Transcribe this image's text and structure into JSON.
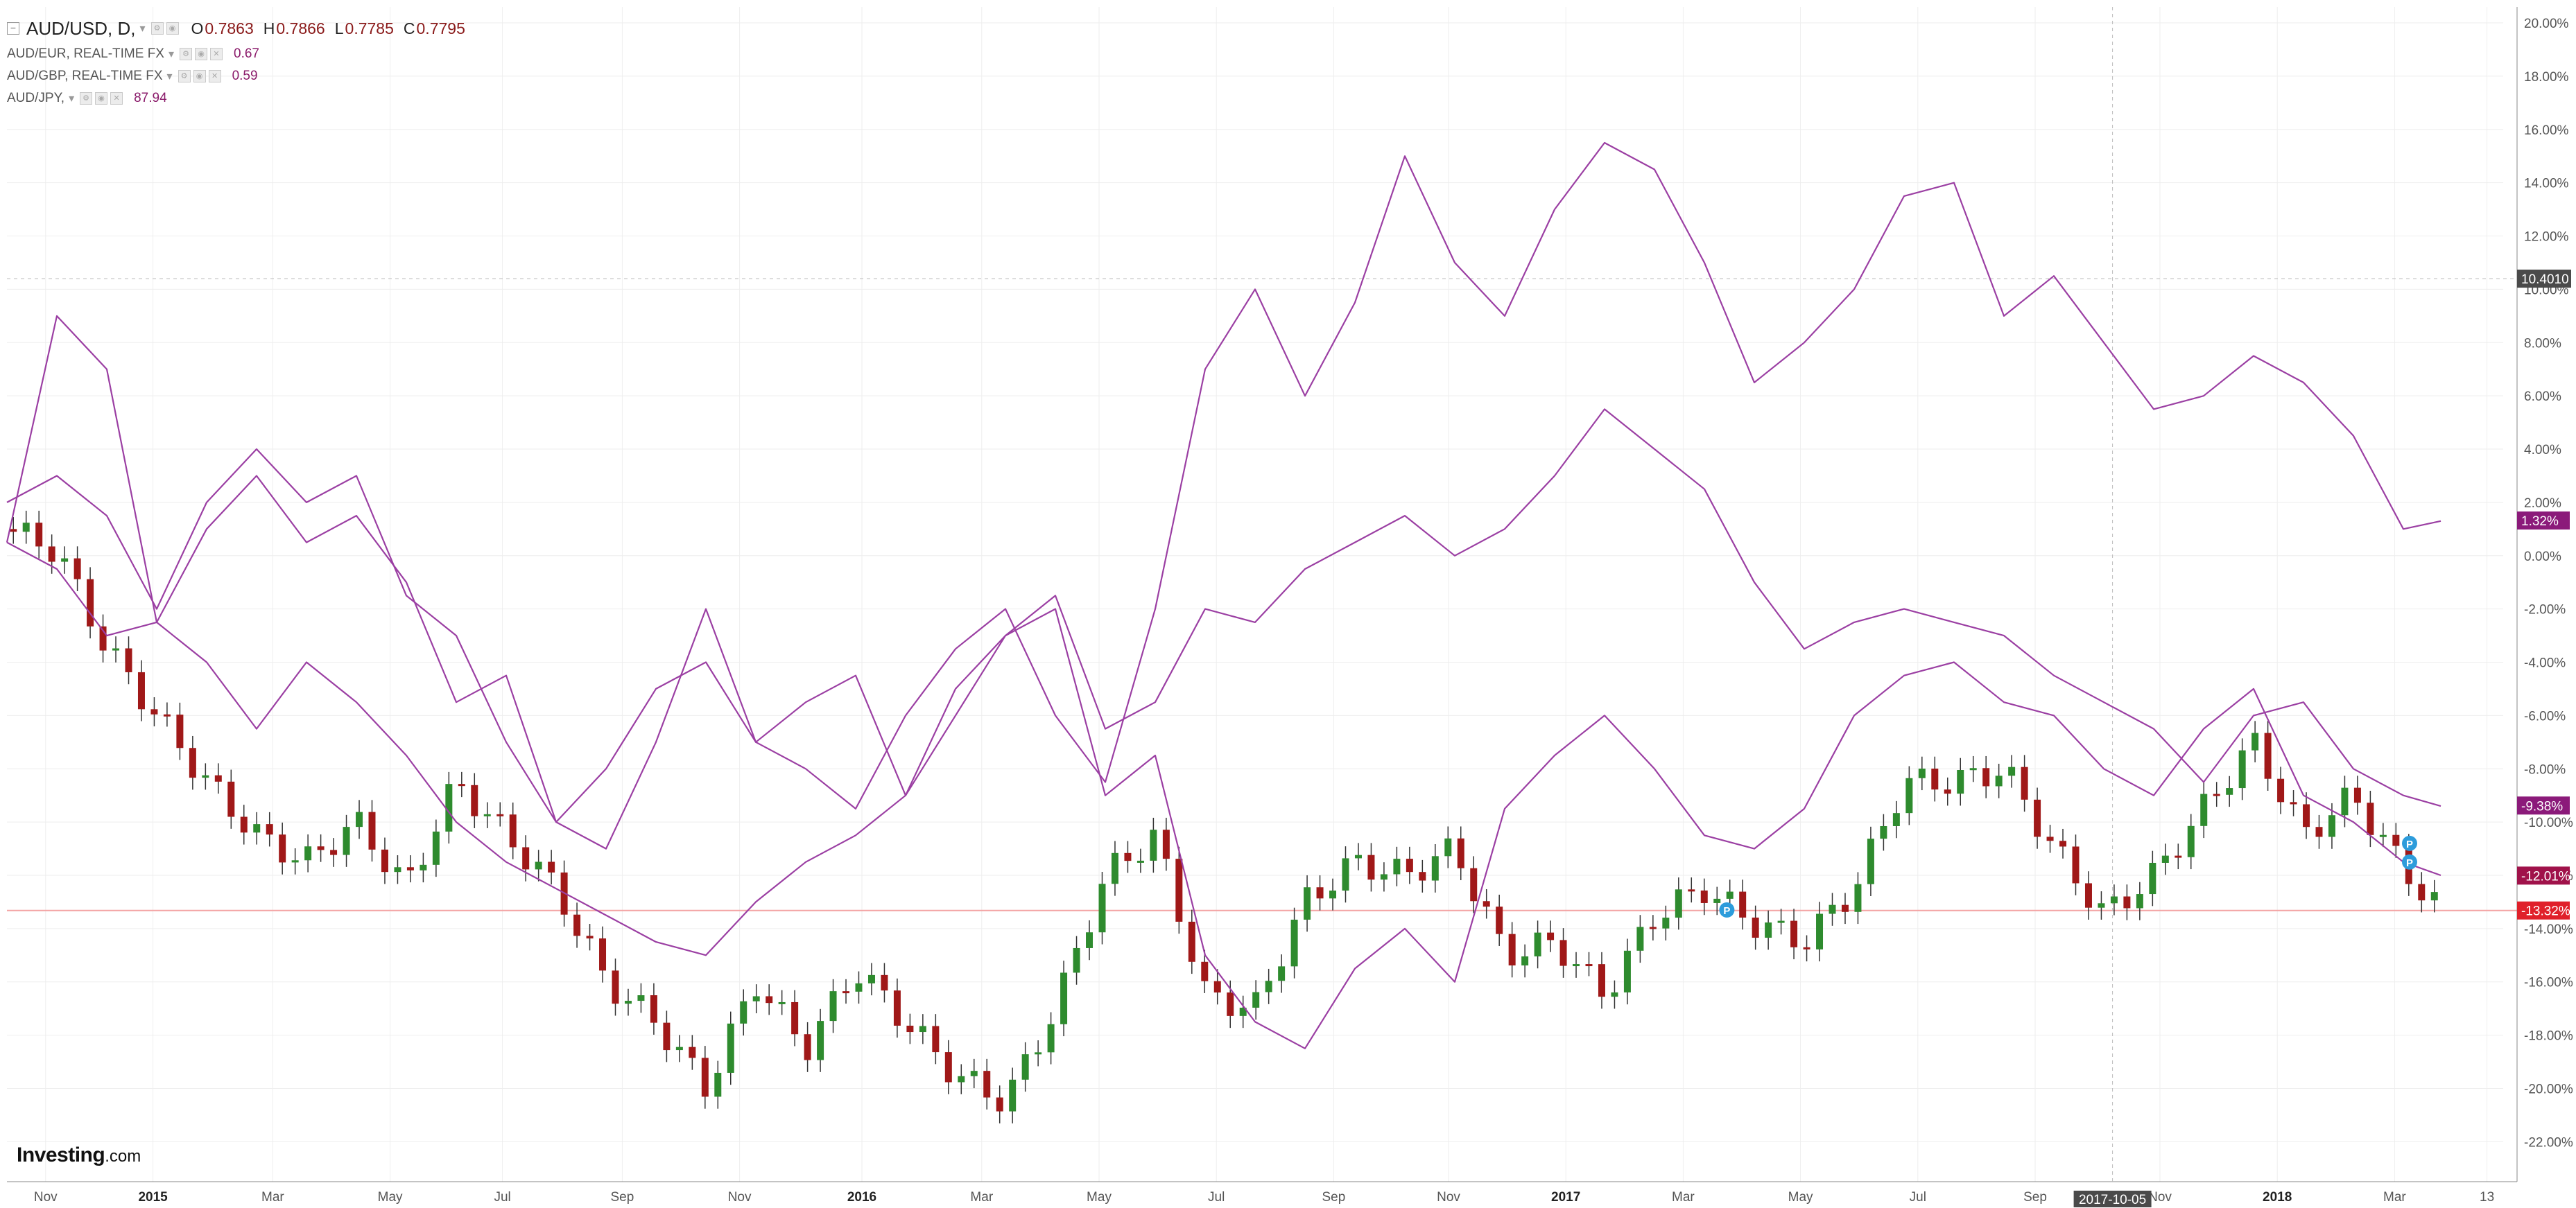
{
  "legend": {
    "main": {
      "symbol": "AUD/USD, D,",
      "open_label": "O",
      "open": "0.7863",
      "high_label": "H",
      "high": "0.7866",
      "low_label": "L",
      "low": "0.7785",
      "close_label": "C",
      "close": "0.7795"
    },
    "series": [
      {
        "label": "AUD/EUR, REAL-TIME FX",
        "value": "0.67"
      },
      {
        "label": "AUD/GBP, REAL-TIME FX",
        "value": "0.59"
      },
      {
        "label": "AUD/JPY,",
        "value": "87.94"
      }
    ]
  },
  "brand": {
    "name": "Investing",
    "suffix": ".com"
  },
  "colors": {
    "up_candle": "#2e8b2e",
    "down_candle": "#a01818",
    "line_series": "#9b3fa3",
    "grid": "#eeeeee",
    "crosshair": "#bbbbbb",
    "current_price_line": "#f3a3a3"
  },
  "chart_data": {
    "type": "line",
    "x_ticks": [
      "Nov",
      "2015",
      "Mar",
      "May",
      "Jul",
      "Sep",
      "Nov",
      "2016",
      "Mar",
      "May",
      "Jul",
      "Sep",
      "Nov",
      "2017",
      "Mar",
      "May",
      "Jul",
      "Sep",
      "2017-10-05",
      "Nov",
      "2018",
      "Mar",
      "13"
    ],
    "y_ticks": [
      "20.00%",
      "18.00%",
      "16.00%",
      "14.00%",
      "12.00%",
      "10.00%",
      "8.00%",
      "6.00%",
      "4.00%",
      "2.00%",
      "0.00%",
      "-2.00%",
      "-4.00%",
      "-6.00%",
      "-8.00%",
      "-10.00%",
      "-12.00%",
      "-14.00%",
      "-16.00%",
      "-18.00%",
      "-20.00%",
      "-22.00%"
    ],
    "ylim": [
      -23.5,
      20.6
    ],
    "y_unit": "percent change",
    "crosshair": {
      "x_label": "2017-10-05",
      "y_label": "10.4010",
      "y_value": 10.4
    },
    "last_value_labels": [
      {
        "series": "AUD/JPY",
        "text": "1.32%",
        "value": 1.32,
        "color": "#8b1a7a"
      },
      {
        "series": "AUD/EUR",
        "text": "-9.38%",
        "value": -9.38,
        "color": "#8b1a7a"
      },
      {
        "series": "AUD/GBP",
        "text": "-12.01%",
        "value": -12.01,
        "color": "#a0124a"
      },
      {
        "series": "AUD/USD",
        "text": "-13.32%",
        "value": -13.32,
        "color": "#e0202a"
      }
    ],
    "current_price_line": -13.32,
    "markers": [
      {
        "label": "P",
        "x": 0.689,
        "y": -13.3
      },
      {
        "label": "P",
        "x": 0.9625,
        "y": -10.8
      },
      {
        "label": "P",
        "x": 0.9625,
        "y": -11.5
      }
    ],
    "series": [
      {
        "name": "AUD/USD",
        "style": "candlestick",
        "x": [
          0.0,
          0.02,
          0.04,
          0.06,
          0.08,
          0.1,
          0.12,
          0.14,
          0.16,
          0.18,
          0.2,
          0.22,
          0.24,
          0.26,
          0.28,
          0.3,
          0.32,
          0.34,
          0.36,
          0.38,
          0.4,
          0.42,
          0.44,
          0.46,
          0.48,
          0.5,
          0.52,
          0.54,
          0.56,
          0.58,
          0.6,
          0.62,
          0.64,
          0.66,
          0.68,
          0.7,
          0.72,
          0.74,
          0.76,
          0.78,
          0.8,
          0.82,
          0.84,
          0.86,
          0.88,
          0.9,
          0.92,
          0.94,
          0.96,
          0.975
        ],
        "values": [
          1.0,
          0.2,
          -3.5,
          -6.0,
          -8.5,
          -10.5,
          -11.5,
          -10.0,
          -12.5,
          -8.5,
          -10.5,
          -12.5,
          -16.0,
          -17.5,
          -20.0,
          -16.0,
          -18.5,
          -15.5,
          -17.5,
          -19.5,
          -20.5,
          -17.0,
          -12.0,
          -10.5,
          -16.5,
          -17.0,
          -13.0,
          -11.5,
          -12.0,
          -11.0,
          -15.0,
          -14.5,
          -16.5,
          -13.5,
          -12.5,
          -13.8,
          -14.5,
          -12.5,
          -8.5,
          -8.5,
          -8.0,
          -11.0,
          -13.5,
          -12.0,
          -9.5,
          -7.0,
          -10.5,
          -9.0,
          -11.8,
          -13.3
        ]
      },
      {
        "name": "AUD/JPY",
        "style": "line",
        "x": [
          0.0,
          0.02,
          0.04,
          0.06,
          0.08,
          0.1,
          0.12,
          0.14,
          0.16,
          0.18,
          0.2,
          0.22,
          0.24,
          0.26,
          0.28,
          0.3,
          0.32,
          0.34,
          0.36,
          0.38,
          0.4,
          0.42,
          0.44,
          0.46,
          0.48,
          0.5,
          0.52,
          0.54,
          0.56,
          0.58,
          0.6,
          0.62,
          0.64,
          0.66,
          0.68,
          0.7,
          0.72,
          0.74,
          0.76,
          0.78,
          0.8,
          0.82,
          0.84,
          0.86,
          0.88,
          0.9,
          0.92,
          0.94,
          0.96,
          0.975
        ],
        "values": [
          0.5,
          9.0,
          7.0,
          -2.5,
          1.0,
          3.0,
          0.5,
          1.5,
          -1.0,
          -5.5,
          -4.5,
          -10.0,
          -11.0,
          -7.0,
          -2.0,
          -7.0,
          -8.0,
          -9.5,
          -6.0,
          -3.5,
          -2.0,
          -6.0,
          -8.5,
          -2.0,
          7.0,
          10.0,
          6.0,
          9.5,
          15.0,
          11.0,
          9.0,
          13.0,
          15.5,
          14.5,
          11.0,
          6.5,
          8.0,
          10.0,
          13.5,
          14.0,
          9.0,
          10.5,
          8.0,
          5.5,
          6.0,
          7.5,
          6.5,
          4.5,
          1.0,
          1.3
        ]
      },
      {
        "name": "AUD/EUR",
        "style": "line",
        "x": [
          0.0,
          0.02,
          0.04,
          0.06,
          0.08,
          0.1,
          0.12,
          0.14,
          0.16,
          0.18,
          0.2,
          0.22,
          0.24,
          0.26,
          0.28,
          0.3,
          0.32,
          0.34,
          0.36,
          0.38,
          0.4,
          0.42,
          0.44,
          0.46,
          0.48,
          0.5,
          0.52,
          0.54,
          0.56,
          0.58,
          0.6,
          0.62,
          0.64,
          0.66,
          0.68,
          0.7,
          0.72,
          0.74,
          0.76,
          0.78,
          0.8,
          0.82,
          0.84,
          0.86,
          0.88,
          0.9,
          0.92,
          0.94,
          0.96,
          0.975
        ],
        "values": [
          0.5,
          -0.5,
          -3.0,
          -2.5,
          -4.0,
          -6.5,
          -4.0,
          -5.5,
          -7.5,
          -10.0,
          -11.5,
          -12.5,
          -13.5,
          -14.5,
          -15.0,
          -13.0,
          -11.5,
          -10.5,
          -9.0,
          -6.0,
          -3.0,
          -1.5,
          -6.5,
          -5.5,
          -2.0,
          -2.5,
          -0.5,
          0.5,
          1.5,
          0.0,
          1.0,
          3.0,
          5.5,
          4.0,
          2.5,
          -1.0,
          -3.5,
          -2.5,
          -2.0,
          -2.5,
          -3.0,
          -4.5,
          -5.5,
          -6.5,
          -8.5,
          -6.0,
          -5.5,
          -8.0,
          -9.0,
          -9.4
        ]
      },
      {
        "name": "AUD/GBP",
        "style": "line",
        "x": [
          0.0,
          0.02,
          0.04,
          0.06,
          0.08,
          0.1,
          0.12,
          0.14,
          0.16,
          0.18,
          0.2,
          0.22,
          0.24,
          0.26,
          0.28,
          0.3,
          0.32,
          0.34,
          0.36,
          0.38,
          0.4,
          0.42,
          0.44,
          0.46,
          0.48,
          0.5,
          0.52,
          0.54,
          0.56,
          0.58,
          0.6,
          0.62,
          0.64,
          0.66,
          0.68,
          0.7,
          0.72,
          0.74,
          0.76,
          0.78,
          0.8,
          0.82,
          0.84,
          0.86,
          0.88,
          0.9,
          0.92,
          0.94,
          0.96,
          0.975
        ],
        "values": [
          2.0,
          3.0,
          1.5,
          -2.0,
          2.0,
          4.0,
          2.0,
          3.0,
          -1.5,
          -3.0,
          -7.0,
          -10.0,
          -8.0,
          -5.0,
          -4.0,
          -7.0,
          -5.5,
          -4.5,
          -9.0,
          -5.0,
          -3.0,
          -2.0,
          -9.0,
          -7.5,
          -15.0,
          -17.5,
          -18.5,
          -15.5,
          -14.0,
          -16.0,
          -9.5,
          -7.5,
          -6.0,
          -8.0,
          -10.5,
          -11.0,
          -9.5,
          -6.0,
          -4.5,
          -4.0,
          -5.5,
          -6.0,
          -8.0,
          -9.0,
          -6.5,
          -5.0,
          -9.0,
          -10.0,
          -11.5,
          -12.0
        ]
      }
    ]
  }
}
